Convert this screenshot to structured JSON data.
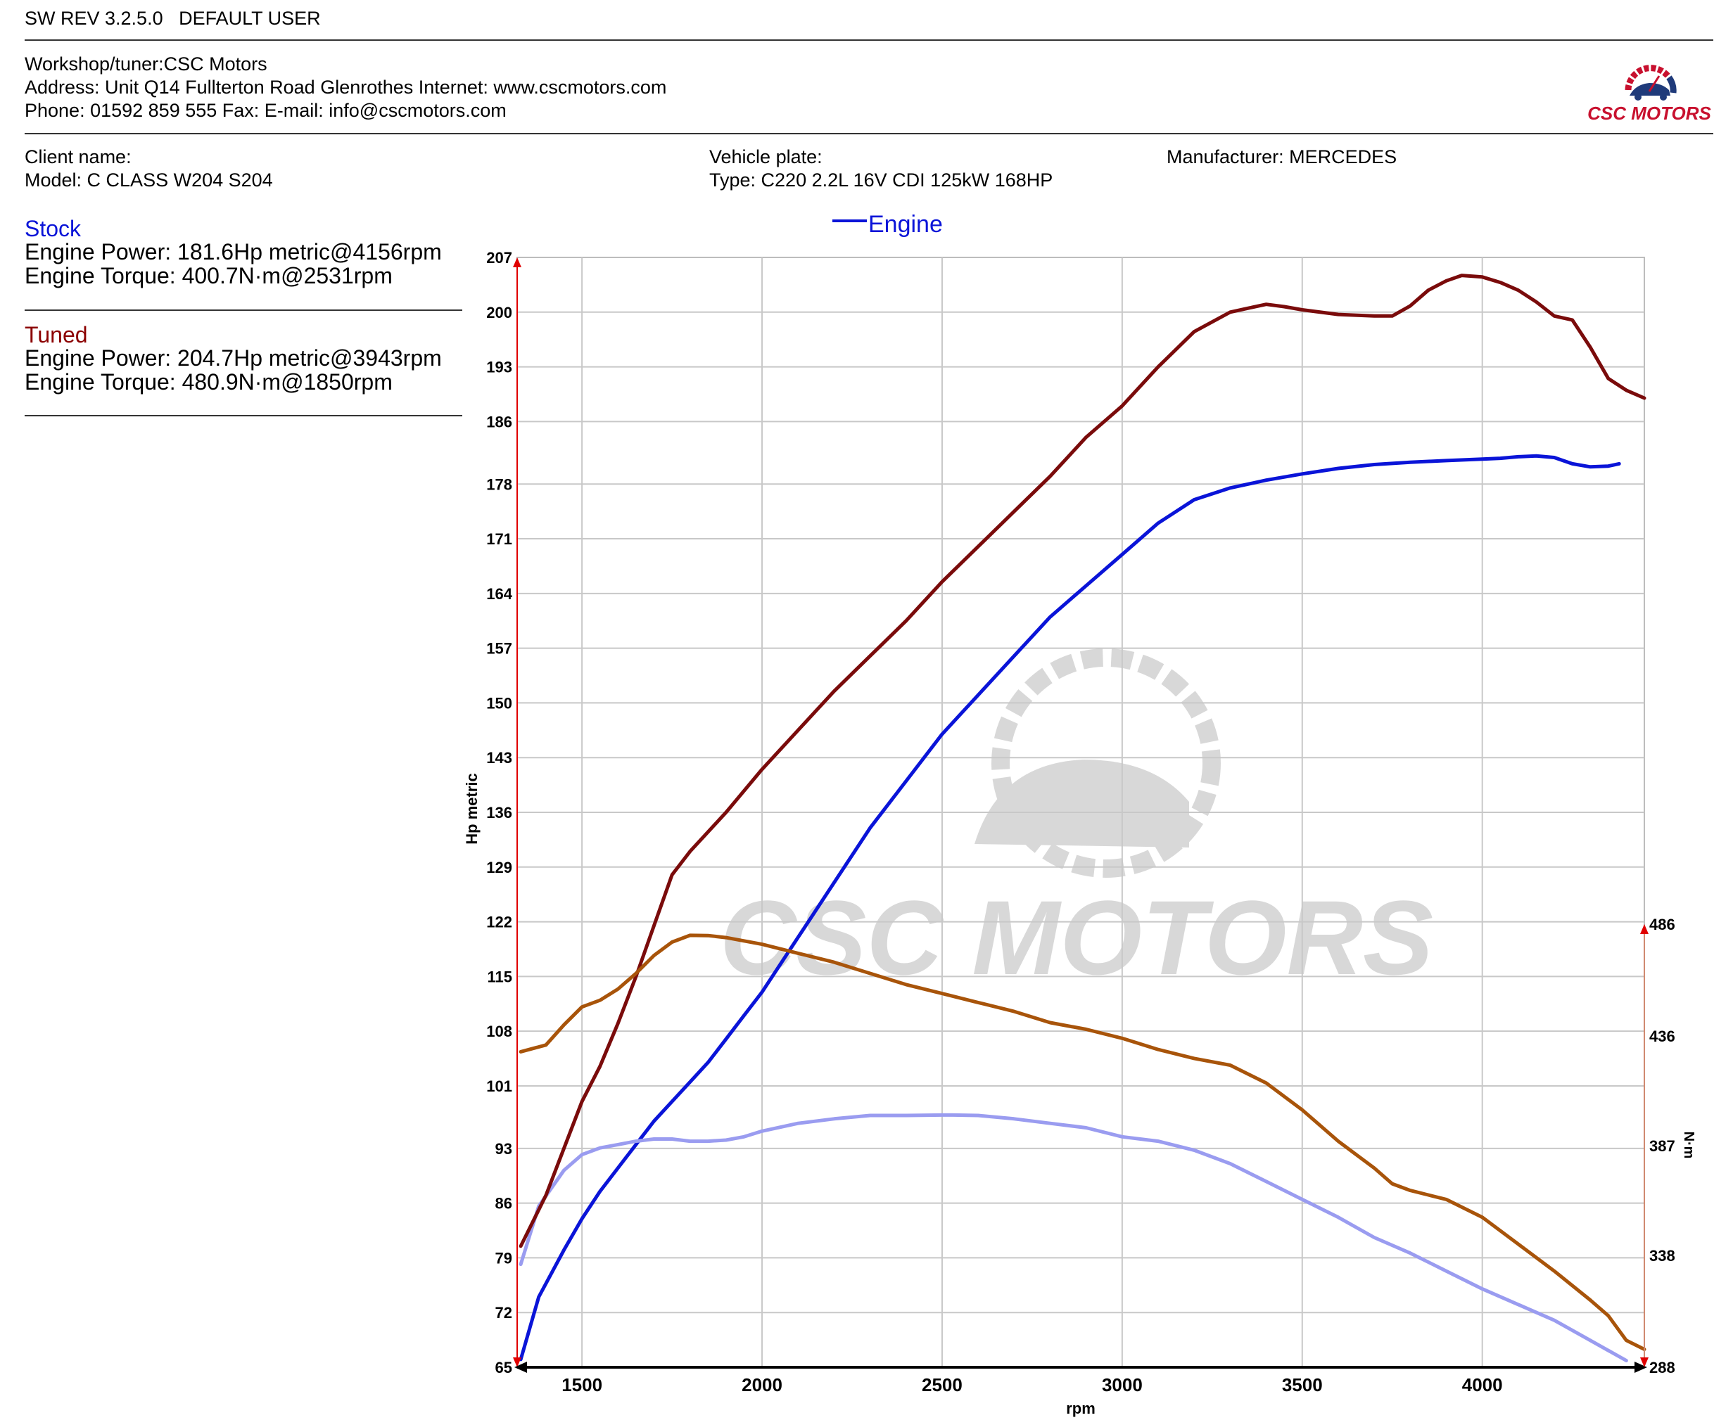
{
  "header": {
    "sw_rev": "SW REV 3.2.5.0",
    "user": "DEFAULT USER"
  },
  "workshop": {
    "line1": "Workshop/tuner:CSC Motors",
    "line2": "Address: Unit Q14 Fullterton Road Glenrothes Internet: www.cscmotors.com",
    "line3": "Phone: 01592 859 555 Fax:  E-mail: info@cscmotors.com",
    "logo_text": "CSC MOTORS"
  },
  "vehicle": {
    "client_name": "Client name:",
    "model": "Model: C CLASS W204 S204",
    "plate": "Vehicle plate:",
    "type": "Type: C220 2.2L 16V CDI 125kW 168HP",
    "manufacturer": "Manufacturer: MERCEDES"
  },
  "stock": {
    "title": "Stock",
    "power": "Engine Power: 181.6Hp metric@4156rpm",
    "torque": "Engine Torque: 400.7N·m@2531rpm"
  },
  "tuned": {
    "title": "Tuned",
    "power": "Engine Power: 204.7Hp metric@3943rpm",
    "torque": "Engine Torque: 480.9N·m@1850rpm"
  },
  "colors": {
    "stock_power": "#0a14d8",
    "stock_torque": "#9a9cf0",
    "tuned_power": "#7a0b0b",
    "tuned_torque": "#a8540a",
    "stock_label": "#0a14d8",
    "tuned_label": "#8b0000",
    "grid": "#c8c8c8",
    "watermark": "#d8d8d8",
    "left_axis_arrow": "#e00000",
    "right_axis": "#d08a70"
  },
  "chart_data": {
    "type": "line",
    "legend": [
      "Engine"
    ],
    "legend_placement": "top-center",
    "grid": true,
    "xlabel": "rpm",
    "ylabel": "Hp metric",
    "y2label": "N·m",
    "xlim": [
      1320,
      4450
    ],
    "ylim": [
      65,
      207
    ],
    "y2lim": [
      288,
      486
    ],
    "x_ticks": [
      "1500",
      "2000",
      "2500",
      "3000",
      "3500",
      "4000"
    ],
    "y_ticks": [
      "65",
      "72",
      "79",
      "86",
      "93",
      "101",
      "108",
      "115",
      "122",
      "129",
      "136",
      "143",
      "150",
      "157",
      "164",
      "171",
      "178",
      "186",
      "193",
      "200",
      "207"
    ],
    "y2_ticks": [
      "288",
      "338",
      "387",
      "436",
      "486"
    ],
    "watermark": "CSC MOTORS",
    "series": [
      {
        "name": "Stock power",
        "axis": "left",
        "x": [
          1330,
          1380,
          1450,
          1500,
          1550,
          1600,
          1650,
          1700,
          1750,
          1800,
          1850,
          1900,
          1950,
          2000,
          2100,
          2200,
          2300,
          2400,
          2500,
          2600,
          2700,
          2800,
          2900,
          3000,
          3100,
          3200,
          3300,
          3400,
          3500,
          3600,
          3700,
          3800,
          3900,
          4000,
          4050,
          4100,
          4150,
          4200,
          4250,
          4300,
          4350,
          4380
        ],
        "values": [
          66,
          74,
          80,
          84,
          87.5,
          90.5,
          93.5,
          96.5,
          99,
          101.5,
          104,
          107,
          110,
          113,
          120,
          127,
          134,
          140,
          146,
          151,
          156,
          161,
          165,
          169,
          173,
          176,
          177.5,
          178.5,
          179.3,
          180,
          180.5,
          180.8,
          181,
          181.2,
          181.3,
          181.5,
          181.6,
          181.4,
          180.6,
          180.2,
          180.3,
          180.6
        ]
      },
      {
        "name": "Stock torque",
        "axis": "right",
        "x": [
          1330,
          1380,
          1450,
          1500,
          1550,
          1600,
          1650,
          1700,
          1750,
          1800,
          1850,
          1900,
          1950,
          2000,
          2100,
          2200,
          2300,
          2400,
          2500,
          2531,
          2600,
          2700,
          2800,
          2900,
          3000,
          3100,
          3200,
          3300,
          3400,
          3500,
          3600,
          3700,
          3800,
          3900,
          4000,
          4100,
          4200,
          4300,
          4400
        ],
        "values": [
          334,
          360,
          376,
          383,
          386,
          387.5,
          389,
          390,
          390,
          389,
          389,
          389.5,
          391,
          393.5,
          397,
          399,
          400.5,
          400.5,
          400.7,
          400.7,
          400.5,
          399,
          397,
          395,
          391,
          389,
          385,
          379,
          371,
          363,
          355,
          346,
          339,
          331,
          323,
          316,
          309,
          300,
          291
        ]
      },
      {
        "name": "Tuned power",
        "axis": "left",
        "x": [
          1330,
          1400,
          1450,
          1500,
          1550,
          1600,
          1650,
          1700,
          1750,
          1800,
          1850,
          1900,
          2000,
          2100,
          2200,
          2300,
          2400,
          2500,
          2600,
          2700,
          2800,
          2900,
          3000,
          3100,
          3200,
          3300,
          3350,
          3400,
          3450,
          3500,
          3600,
          3700,
          3750,
          3800,
          3850,
          3900,
          3943,
          4000,
          4050,
          4100,
          4150,
          4200,
          4250,
          4300,
          4350,
          4400,
          4450
        ],
        "values": [
          80.5,
          87,
          93,
          99,
          103.5,
          109,
          115,
          121.5,
          128,
          131,
          133.5,
          136,
          141.5,
          146.5,
          151.5,
          156,
          160.5,
          165.5,
          170,
          174.5,
          179,
          184,
          188,
          193,
          197.5,
          200,
          200.5,
          201,
          200.7,
          200.3,
          199.7,
          199.5,
          199.5,
          200.8,
          202.8,
          204,
          204.7,
          204.5,
          203.8,
          202.8,
          201.3,
          199.5,
          199,
          195.5,
          191.5,
          190,
          189
        ]
      },
      {
        "name": "Tuned torque",
        "axis": "right",
        "x": [
          1330,
          1400,
          1450,
          1500,
          1550,
          1600,
          1650,
          1700,
          1750,
          1800,
          1850,
          1900,
          2000,
          2100,
          2200,
          2300,
          2400,
          2500,
          2600,
          2700,
          2800,
          2900,
          3000,
          3100,
          3200,
          3300,
          3400,
          3500,
          3600,
          3700,
          3750,
          3800,
          3850,
          3900,
          4000,
          4100,
          4200,
          4300,
          4350,
          4400,
          4450
        ],
        "values": [
          429,
          432,
          441,
          449,
          452,
          457,
          464,
          472,
          478,
          481,
          480.9,
          480,
          477,
          473,
          469,
          464,
          459,
          455,
          451,
          447,
          442,
          439,
          435,
          430,
          426,
          423,
          415,
          403,
          389,
          377,
          370,
          367,
          365,
          363,
          355,
          343,
          331,
          318,
          311,
          300,
          296
        ]
      }
    ]
  }
}
